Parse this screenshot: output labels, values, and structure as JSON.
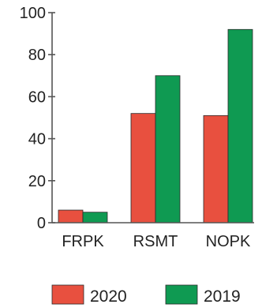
{
  "chart_data": {
    "type": "bar",
    "categories": [
      "FRPK",
      "RSMT",
      "NOPK"
    ],
    "series": [
      {
        "name": "2020",
        "values": [
          6,
          52,
          51
        ],
        "color": "#e8503f"
      },
      {
        "name": "2019",
        "values": [
          5,
          70,
          92
        ],
        "color": "#0f9a52"
      }
    ],
    "title": "",
    "xlabel": "",
    "ylabel": "",
    "ylim": [
      0,
      100
    ],
    "yticks": [
      0,
      20,
      40,
      60,
      80,
      100
    ],
    "grid": false,
    "legend": "bottom"
  }
}
